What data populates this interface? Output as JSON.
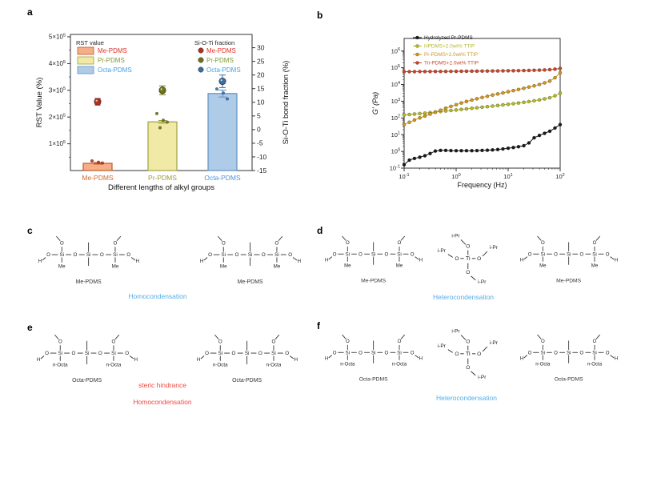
{
  "panel_labels": {
    "a": "a",
    "b": "b",
    "c": "c",
    "d": "d",
    "e": "e",
    "f": "f"
  },
  "chart_data": [
    {
      "id": "a",
      "type": "bar+scatter",
      "xlabel": "Different lengths of alkyl groups",
      "ylabel_left": "RST Value (%)",
      "ylabel_right": "Si-O-Ti bond fraction (%)",
      "categories": [
        "Me-PDMS",
        "Pr-PDMS",
        "Octa-PDMS"
      ],
      "category_label_colors": [
        "#CD6A2E",
        "#9B9B2F",
        "#4D94D6"
      ],
      "legend_bars_title": "RST value",
      "legend_dots_title": "Si-O-Ti fraction",
      "legend_text_colors": [
        "#E03228",
        "#7E9B30",
        "#3FA0E8"
      ],
      "ylim_left": [
        0,
        500000
      ],
      "yticks_left_mantissa": [
        "1×10",
        "2×10",
        "3×10",
        "4×10",
        "5×10"
      ],
      "yticks_left_exponent": "5",
      "ylim_right": [
        -15,
        30
      ],
      "yticks_right": [
        -15,
        -10,
        -5,
        0,
        5,
        10,
        15,
        20,
        25,
        30
      ],
      "bars": {
        "values": [
          27000,
          182000,
          288000
        ],
        "errors": [
          3000,
          5000,
          13000
        ],
        "fills": [
          "#F5AE88",
          "#F0EAA6",
          "#AECBE8"
        ],
        "strokes": [
          "#C05A2A",
          "#A0A040",
          "#6090C0"
        ],
        "replicate_points": [
          [
            36000,
            31000,
            28000
          ],
          [
            213000,
            188000,
            181000,
            160000
          ],
          [
            305000,
            290000,
            268000
          ]
        ]
      },
      "scatter": {
        "values": [
          10.2,
          14.4,
          17.7
        ],
        "errors": [
          1.2,
          1.6,
          2.3
        ],
        "colors": [
          "#B5311D",
          "#6D7418",
          "#3A6EA5"
        ]
      }
    },
    {
      "id": "b",
      "type": "line",
      "xlabel": "Frequency (Hz)",
      "ylabel": "G' (Pa)",
      "xlog": true,
      "ylog": true,
      "xlim": [
        0.1,
        100
      ],
      "ylim": [
        0.1,
        1000000
      ],
      "x_tick_exponents": [
        -1,
        0,
        1,
        2
      ],
      "y_tick_exponents": [
        -1,
        0,
        1,
        2,
        3,
        4,
        5,
        6
      ],
      "x": [
        0.1,
        0.126,
        0.158,
        0.2,
        0.251,
        0.316,
        0.398,
        0.501,
        0.631,
        0.794,
        1,
        1.26,
        1.58,
        2,
        2.51,
        3.16,
        3.98,
        5.01,
        6.31,
        7.94,
        10,
        12.6,
        15.8,
        20,
        25.1,
        31.6,
        39.8,
        50.1,
        63.1,
        79.4,
        100
      ],
      "series": [
        {
          "name": "Hydrolyzed Pr-PDMS",
          "color": "#1A1A1A",
          "y": [
            0.16,
            0.3,
            0.38,
            0.45,
            0.55,
            0.75,
            1.05,
            1.15,
            1.15,
            1.12,
            1.1,
            1.1,
            1.1,
            1.1,
            1.12,
            1.15,
            1.18,
            1.22,
            1.3,
            1.4,
            1.55,
            1.7,
            1.9,
            2.2,
            3.2,
            6.5,
            9,
            12,
            16,
            25,
            40
          ]
        },
        {
          "name": "HPDMS+2.0wt% TTIP",
          "color": "#B5B92B",
          "y": [
            150,
            160,
            170,
            182,
            195,
            210,
            225,
            242,
            260,
            280,
            300,
            322,
            348,
            375,
            405,
            437,
            472,
            510,
            552,
            600,
            650,
            710,
            780,
            860,
            950,
            1060,
            1200,
            1380,
            1600,
            2100,
            3000
          ]
        },
        {
          "name": "Pr-PDMS+2.0wt% TTIP",
          "color": "#D3961E",
          "y": [
            40,
            55,
            75,
            100,
            130,
            170,
            220,
            290,
            380,
            490,
            620,
            780,
            960,
            1170,
            1400,
            1670,
            1980,
            2330,
            2720,
            3160,
            3700,
            4300,
            5000,
            5900,
            7000,
            8300,
            10000,
            12500,
            16000,
            25000,
            50000
          ]
        },
        {
          "name": "Tri-PDMS+2.0wt% TTIP",
          "color": "#C9472A",
          "y": [
            58000,
            58200,
            58500,
            58800,
            59000,
            59300,
            59600,
            60000,
            60300,
            60700,
            61000,
            61400,
            61800,
            62200,
            62600,
            63000,
            63500,
            64000,
            64500,
            65000,
            65600,
            66200,
            67000,
            68000,
            69000,
            70500,
            72000,
            74000,
            77000,
            82000,
            90000
          ]
        }
      ]
    }
  ],
  "molecules": {
    "atoms": {
      "h": "H",
      "o": "O",
      "si": "Si",
      "ti": "Ti",
      "ipr": "i-Pr"
    },
    "subs": {
      "me": "Me",
      "octa": "n-Octa"
    },
    "names": {
      "me": "Me-PDMS",
      "octa": "Octa-PDMS"
    }
  },
  "panels": {
    "c": {
      "annotations": [
        {
          "text": "Homocondensation",
          "color": "#55AEE8"
        }
      ]
    },
    "d": {
      "annotations": [
        {
          "text": "Heterocondensation",
          "color": "#55AEE8"
        }
      ]
    },
    "e": {
      "annotations": [
        {
          "text": "steric hindrance",
          "color": "#F04840"
        },
        {
          "text": "Homocondensation",
          "color": "#F04840"
        }
      ]
    },
    "f": {
      "annotations": [
        {
          "text": "Heterocondensation",
          "color": "#55AEE8"
        }
      ]
    }
  }
}
